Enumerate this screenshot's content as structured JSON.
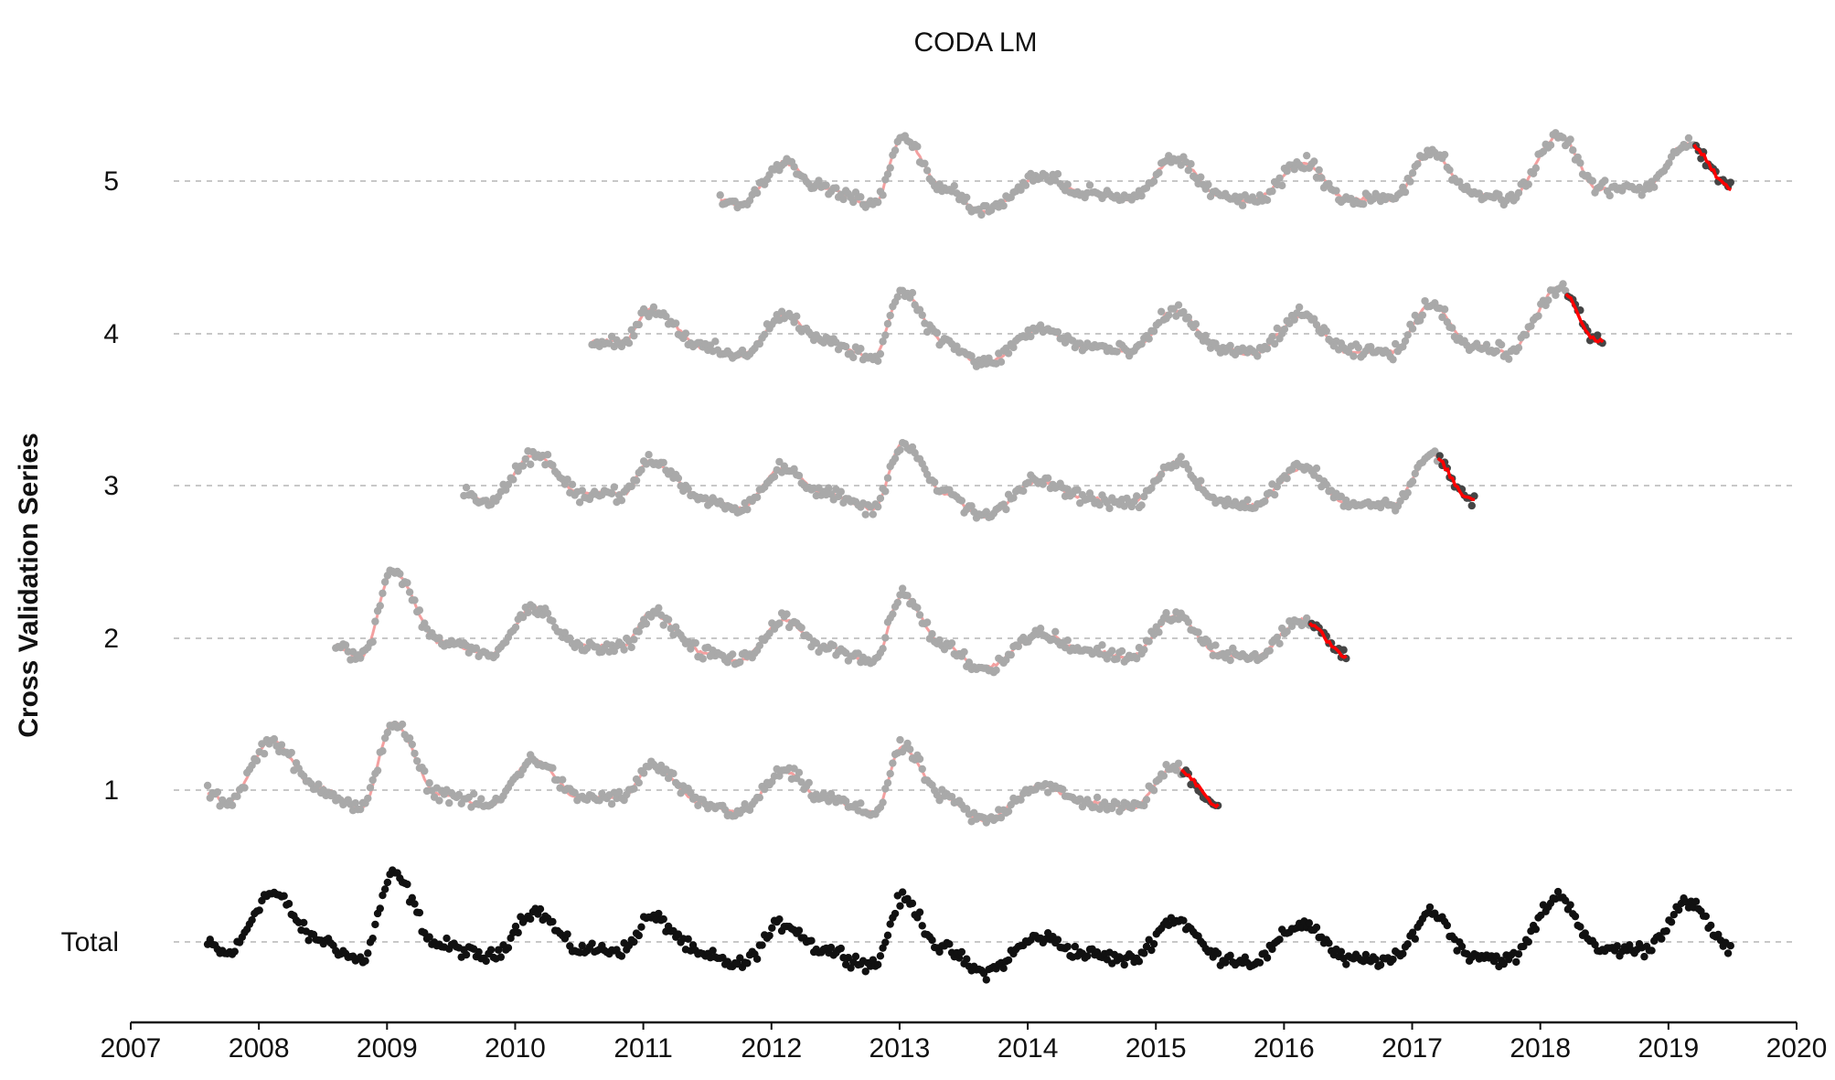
{
  "chart_data": {
    "type": "scatter",
    "title": "CODA LM",
    "xlabel": "",
    "ylabel": "Cross Validation Series",
    "x_ticks": [
      "2007",
      "2008",
      "2009",
      "2010",
      "2011",
      "2012",
      "2013",
      "2014",
      "2015",
      "2016",
      "2017",
      "2018",
      "2019",
      "2020"
    ],
    "xlim": [
      2007.0,
      2020.0
    ],
    "y_categories": [
      "Total",
      "1",
      "2",
      "3",
      "4",
      "5"
    ],
    "grid": "horizontal dashed lines at each category",
    "legend": "none",
    "colors": {
      "total_points": "#111111",
      "train_points": "#a9a9a9",
      "test_points": "#454545",
      "fitted_line": "#f08080",
      "forecast_line": "#ff0000",
      "grid": "#c8c8c8",
      "axis": "#111111"
    },
    "seasonal_peaks": [
      {
        "year": 2007.6,
        "value": -0.02
      },
      {
        "year": 2007.75,
        "value": -0.08
      },
      {
        "year": 2008.1,
        "value": 0.32
      },
      {
        "year": 2008.45,
        "value": 0.02
      },
      {
        "year": 2008.8,
        "value": -0.12
      },
      {
        "year": 2009.05,
        "value": 0.44
      },
      {
        "year": 2009.4,
        "value": -0.02
      },
      {
        "year": 2009.8,
        "value": -0.1
      },
      {
        "year": 2010.15,
        "value": 0.2
      },
      {
        "year": 2010.5,
        "value": -0.05
      },
      {
        "year": 2010.85,
        "value": -0.05
      },
      {
        "year": 2011.05,
        "value": 0.16
      },
      {
        "year": 2011.5,
        "value": -0.1
      },
      {
        "year": 2011.75,
        "value": -0.15
      },
      {
        "year": 2012.1,
        "value": 0.12
      },
      {
        "year": 2012.4,
        "value": -0.05
      },
      {
        "year": 2012.8,
        "value": -0.15
      },
      {
        "year": 2013.02,
        "value": 0.28
      },
      {
        "year": 2013.35,
        "value": -0.05
      },
      {
        "year": 2013.65,
        "value": -0.2
      },
      {
        "year": 2014.1,
        "value": 0.03
      },
      {
        "year": 2014.45,
        "value": -0.08
      },
      {
        "year": 2014.8,
        "value": -0.12
      },
      {
        "year": 2015.15,
        "value": 0.15
      },
      {
        "year": 2015.5,
        "value": -0.1
      },
      {
        "year": 2015.75,
        "value": -0.13
      },
      {
        "year": 2016.15,
        "value": 0.12
      },
      {
        "year": 2016.5,
        "value": -0.12
      },
      {
        "year": 2016.85,
        "value": -0.12
      },
      {
        "year": 2017.15,
        "value": 0.2
      },
      {
        "year": 2017.45,
        "value": -0.08
      },
      {
        "year": 2017.75,
        "value": -0.12
      },
      {
        "year": 2018.15,
        "value": 0.3
      },
      {
        "year": 2018.45,
        "value": -0.05
      },
      {
        "year": 2018.8,
        "value": -0.05
      },
      {
        "year": 2019.15,
        "value": 0.25
      },
      {
        "year": 2019.5,
        "value": -0.05
      }
    ],
    "series": [
      {
        "name": "Total",
        "row": 0,
        "start": 2007.6,
        "end": 2019.5,
        "cutoff": null
      },
      {
        "name": "1",
        "row": 1,
        "start": 2007.6,
        "end": 2015.5,
        "cutoff": 2015.2
      },
      {
        "name": "2",
        "row": 2,
        "start": 2008.6,
        "end": 2016.5,
        "cutoff": 2016.2
      },
      {
        "name": "3",
        "row": 3,
        "start": 2009.6,
        "end": 2017.5,
        "cutoff": 2017.2
      },
      {
        "name": "4",
        "row": 4,
        "start": 2010.6,
        "end": 2018.5,
        "cutoff": 2018.2
      },
      {
        "name": "5",
        "row": 5,
        "start": 2011.6,
        "end": 2019.5,
        "cutoff": 2019.2
      }
    ]
  }
}
